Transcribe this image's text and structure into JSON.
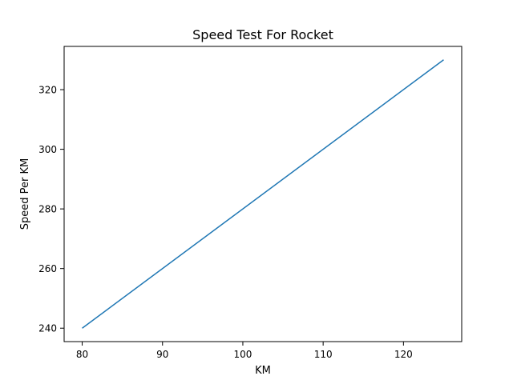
{
  "chart_data": {
    "type": "line",
    "title": "Speed Test For Rocket",
    "xlabel": "KM",
    "ylabel": "Speed Per KM",
    "xlim": [
      77.75,
      127.25
    ],
    "ylim": [
      235.5,
      334.5
    ],
    "xticks": [
      80,
      90,
      100,
      110,
      120
    ],
    "yticks": [
      240,
      260,
      280,
      300,
      320
    ],
    "grid": false,
    "series": [
      {
        "color": "#1f77b4",
        "x": [
          80,
          125
        ],
        "y": [
          240,
          330
        ]
      }
    ]
  }
}
